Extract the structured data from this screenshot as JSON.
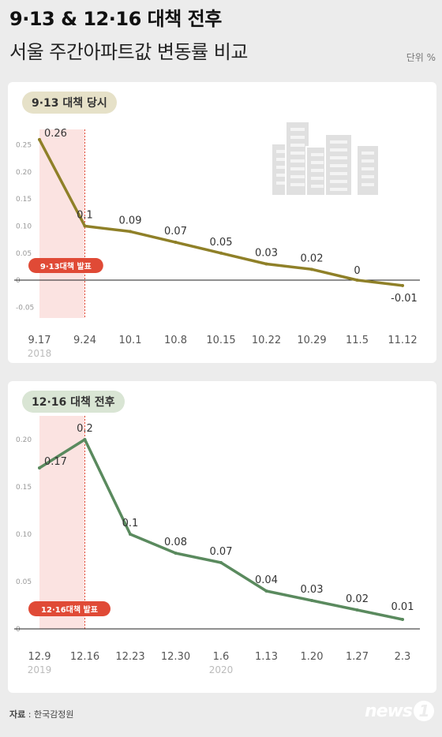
{
  "header": {
    "title_line1": "9·13 & 12·16 대책 전후",
    "title_line2": "서울 주간아파트값 변동률 비교",
    "unit": "단위 %"
  },
  "footer": {
    "source_label": "자료",
    "source_value": " : 한국감정원",
    "logo_text": "news",
    "logo_mark": "1"
  },
  "colors": {
    "chart1_line": "#8f8028",
    "chart2_line": "#5a8a5e",
    "pill1_bg": "#e6e1c8",
    "pill2_bg": "#d9e5d4",
    "highlight": "#fbe3e1",
    "marker": "#e04a36"
  },
  "chart_data": [
    {
      "type": "line",
      "title": "9·13 대책 당시",
      "categories": [
        "9.17",
        "9.24",
        "10.1",
        "10.8",
        "10.15",
        "10.22",
        "10.29",
        "11.5",
        "11.12"
      ],
      "values": [
        0.26,
        0.1,
        0.09,
        0.07,
        0.05,
        0.03,
        0.02,
        0,
        -0.01
      ],
      "value_labels": [
        "0.26",
        "0.1",
        "0.09",
        "0.07",
        "0.05",
        "0.03",
        "0.02",
        "0",
        "-0.01"
      ],
      "y_ticks": [
        "0.25",
        "0.20",
        "0.15",
        "0.10",
        "0.05",
        "0",
        "-0.05"
      ],
      "y_tick_values": [
        0.25,
        0.2,
        0.15,
        0.1,
        0.05,
        0,
        -0.05
      ],
      "ylim": [
        -0.07,
        0.27
      ],
      "years": [
        {
          "label": "2018",
          "at": "9.17"
        }
      ],
      "highlight_range": [
        "9.17",
        "9.24"
      ],
      "marker_label": "9·13대책 발표"
    },
    {
      "type": "line",
      "title": "12·16 대책 전후",
      "categories": [
        "12.9",
        "12.16",
        "12.23",
        "12.30",
        "1.6",
        "1.13",
        "1.20",
        "1.27",
        "2.3"
      ],
      "values": [
        0.17,
        0.2,
        0.1,
        0.08,
        0.07,
        0.04,
        0.03,
        0.02,
        0.01
      ],
      "value_labels": [
        "0.17",
        "0.2",
        "0.1",
        "0.08",
        "0.07",
        "0.04",
        "0.03",
        "0.02",
        "0.01"
      ],
      "y_ticks": [
        "0.20",
        "0.15",
        "0.10",
        "0.05",
        "0"
      ],
      "y_tick_values": [
        0.2,
        0.15,
        0.1,
        0.05,
        0
      ],
      "ylim": [
        0,
        0.22
      ],
      "years": [
        {
          "label": "2019",
          "at": "12.9"
        },
        {
          "label": "2020",
          "at": "1.6"
        }
      ],
      "highlight_range": [
        "12.9",
        "12.16"
      ],
      "marker_label": "12·16대책 발표"
    }
  ]
}
